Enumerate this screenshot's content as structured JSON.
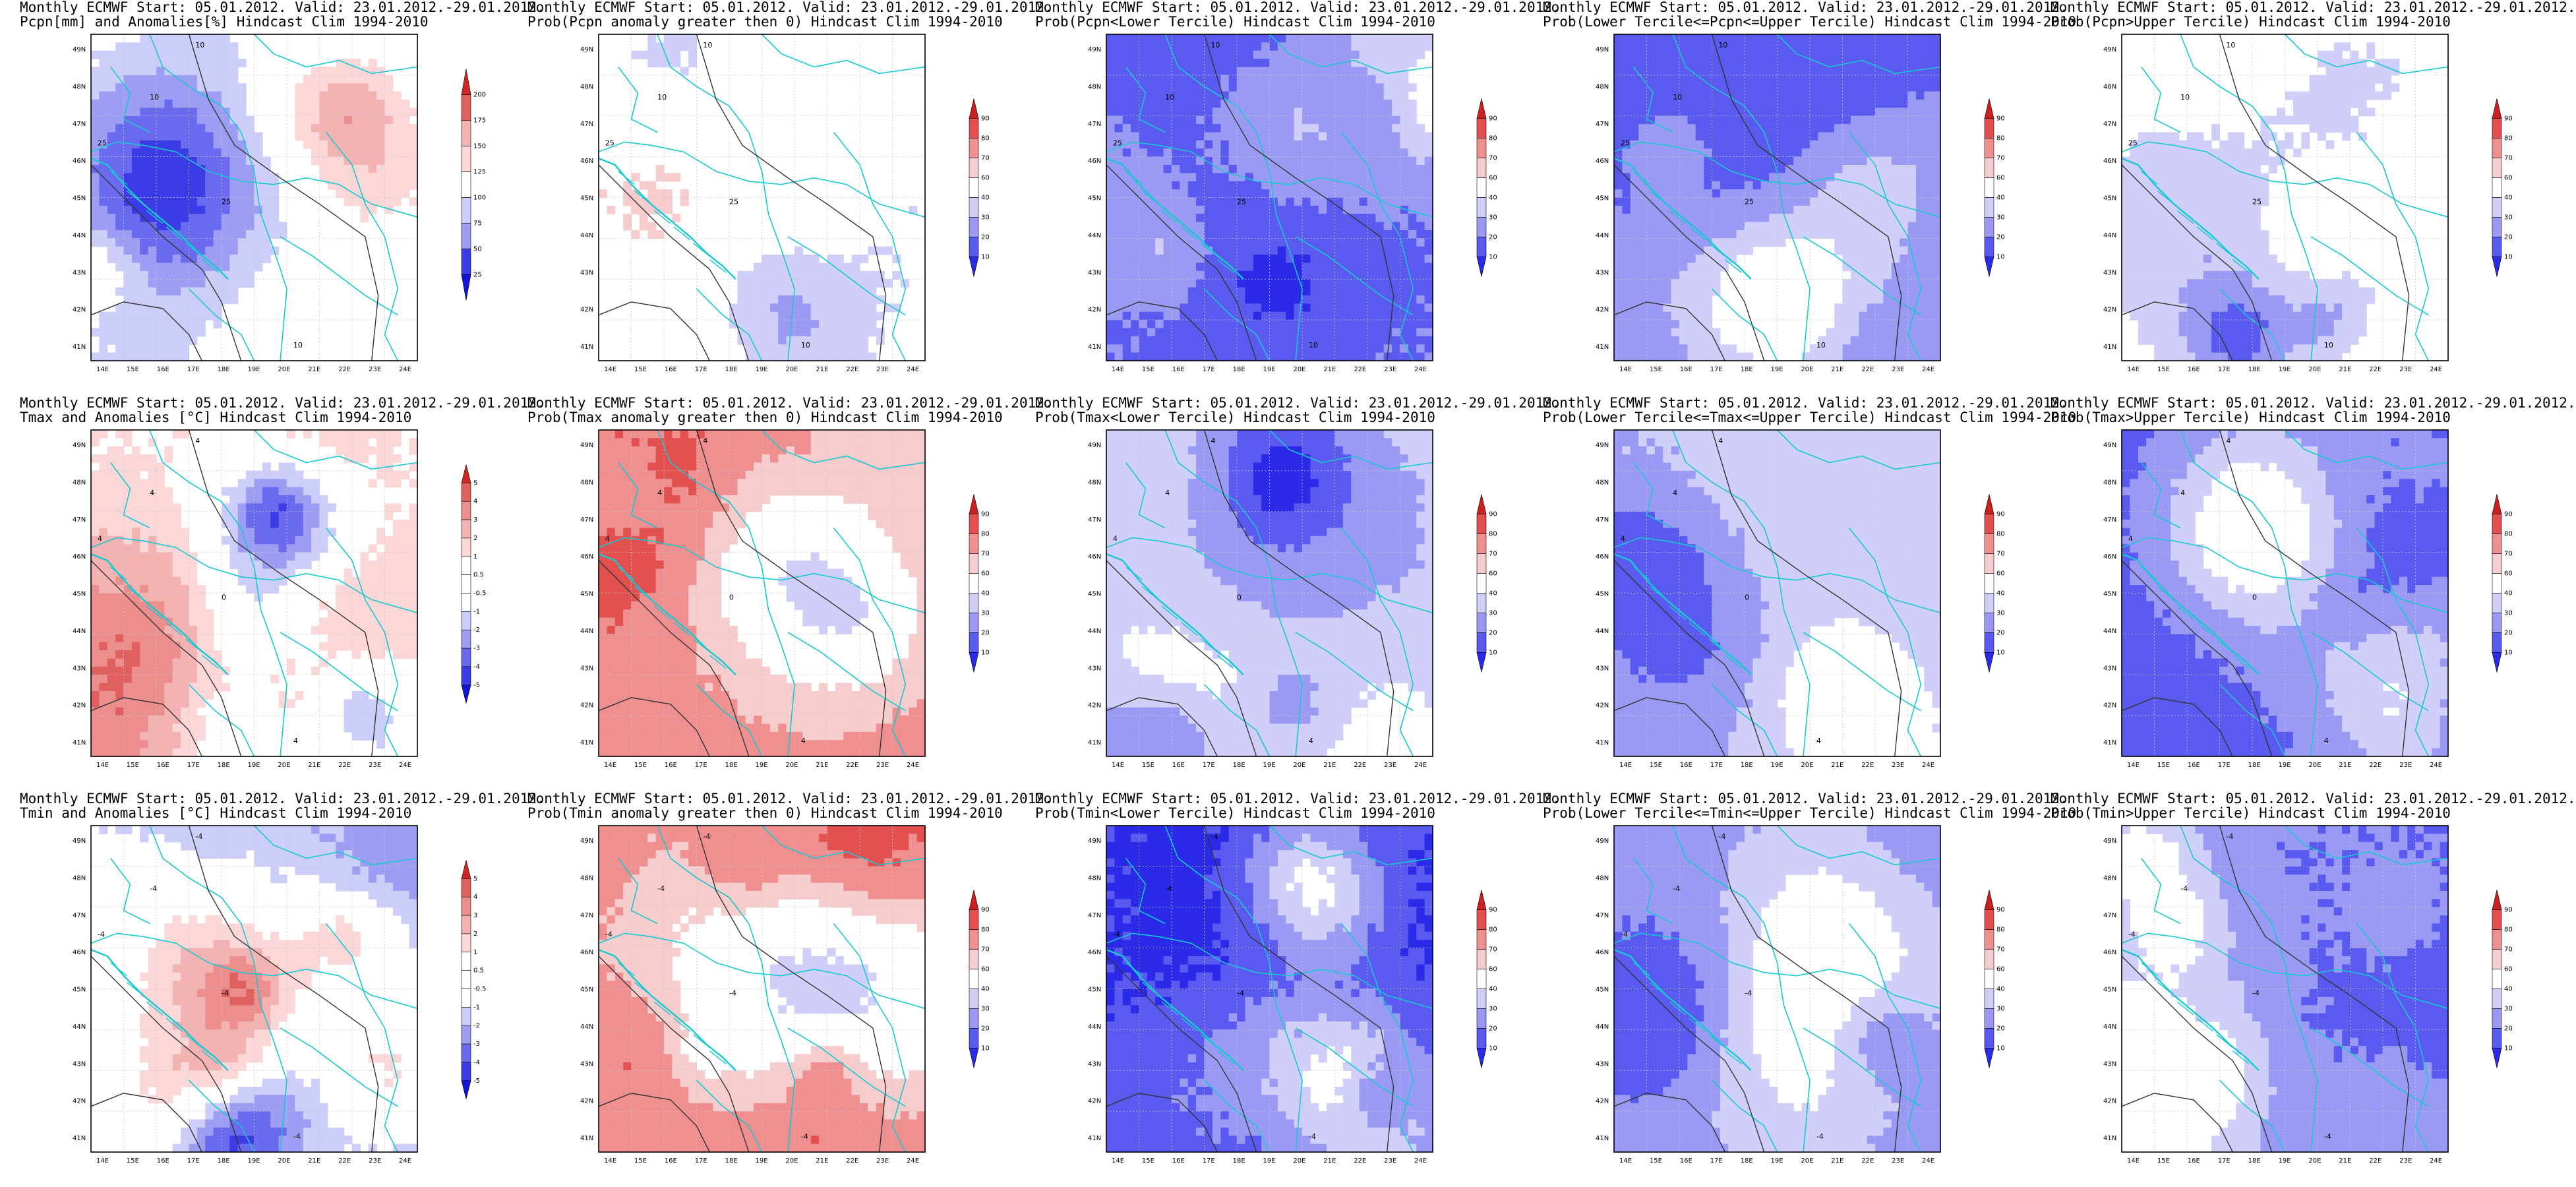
{
  "figure": {
    "panels": [
      {
        "id": "r0c0",
        "title1": "Monthly ECMWF Start: 05.01.2012. Valid: 23.01.2012.-29.01.2012.",
        "title2": "Pcpn[mm] and Anomalies[%] Hindcast Clim 1994-2010",
        "scale": "diverging",
        "ticks": [
          "25",
          "50",
          "75",
          "100",
          "125",
          "150",
          "175",
          "200"
        ],
        "field": "pcpn_anom",
        "contour_labels": [
          "10",
          "10",
          "25",
          "25",
          "10"
        ]
      },
      {
        "id": "r0c1",
        "title1": "Monthly ECMWF Start: 05.01.2012. Valid: 23.01.2012.-29.01.2012.",
        "title2": "Prob(Pcpn anomaly greater then 0) Hindcast Clim 1994-2010",
        "scale": "probability",
        "ticks": [
          "10",
          "20",
          "30",
          "40",
          "60",
          "70",
          "80",
          "90"
        ],
        "field": "pcpn_prob_pos",
        "contour_labels": [
          "10",
          "10",
          "25",
          "25",
          "10"
        ]
      },
      {
        "id": "r0c2",
        "title1": "Monthly ECMWF Start: 05.01.2012. Valid: 23.01.2012.-29.01.2012.",
        "title2": "Prob(Pcpn<Lower Tercile) Hindcast Clim 1994-2010",
        "scale": "probability",
        "ticks": [
          "10",
          "20",
          "30",
          "40",
          "60",
          "70",
          "80",
          "90"
        ],
        "field": "pcpn_lower",
        "contour_labels": [
          "10",
          "10",
          "25",
          "25",
          "10"
        ]
      },
      {
        "id": "r0c3",
        "title1": "Monthly ECMWF Start: 05.01.2012. Valid: 23.01.2012.-29.01.2012.",
        "title2": "Prob(Lower Tercile<=Pcpn<=Upper Tercile) Hindcast Clim 1994-2010",
        "scale": "probability",
        "ticks": [
          "10",
          "20",
          "30",
          "40",
          "60",
          "70",
          "80",
          "90"
        ],
        "field": "pcpn_middle",
        "contour_labels": [
          "10",
          "10",
          "25",
          "25",
          "10"
        ]
      },
      {
        "id": "r0c4",
        "title1": "Monthly ECMWF Start: 05.01.2012. Valid: 23.01.2012.-29.01.2012.",
        "title2": "Prob(Pcpn>Upper Tercile) Hindcast Clim 1994-2010",
        "scale": "probability",
        "ticks": [
          "10",
          "20",
          "30",
          "40",
          "60",
          "70",
          "80",
          "90"
        ],
        "field": "pcpn_upper",
        "contour_labels": [
          "10",
          "10",
          "25",
          "25",
          "10"
        ]
      },
      {
        "id": "r1c0",
        "title1": "Monthly ECMWF Start: 05.01.2012. Valid: 23.01.2012.-29.01.2012.",
        "title2": "Tmax and Anomalies [°C] Hindcast Clim 1994-2010",
        "scale": "diverging",
        "ticks": [
          "-5",
          "-4",
          "-3",
          "-2",
          "-1",
          "-0.5",
          "0.5",
          "1",
          "2",
          "3",
          "4",
          "5"
        ],
        "field": "tmax_anom",
        "contour_labels": [
          "4",
          "4",
          "4",
          "0",
          "4"
        ]
      },
      {
        "id": "r1c1",
        "title1": "Monthly ECMWF Start: 05.01.2012. Valid: 23.01.2012.-29.01.2012.",
        "title2": "Prob(Tmax anomaly greater then 0) Hindcast Clim 1994-2010",
        "scale": "probability",
        "ticks": [
          "10",
          "20",
          "30",
          "40",
          "60",
          "70",
          "80",
          "90"
        ],
        "field": "tmax_prob_pos",
        "contour_labels": [
          "4",
          "4",
          "4",
          "0",
          "4"
        ]
      },
      {
        "id": "r1c2",
        "title1": "Monthly ECMWF Start: 05.01.2012. Valid: 23.01.2012.-29.01.2012.",
        "title2": "Prob(Tmax<Lower Tercile) Hindcast Clim 1994-2010",
        "scale": "probability",
        "ticks": [
          "10",
          "20",
          "30",
          "40",
          "60",
          "70",
          "80",
          "90"
        ],
        "field": "tmax_lower",
        "contour_labels": [
          "4",
          "4",
          "4",
          "0",
          "4"
        ]
      },
      {
        "id": "r1c3",
        "title1": "Monthly ECMWF Start: 05.01.2012. Valid: 23.01.2012.-29.01.2012.",
        "title2": "Prob(Lower Tercile<=Tmax<=Upper Tercile) Hindcast Clim 1994-2010",
        "scale": "probability",
        "ticks": [
          "10",
          "20",
          "30",
          "40",
          "60",
          "70",
          "80",
          "90"
        ],
        "field": "tmax_middle",
        "contour_labels": [
          "4",
          "4",
          "4",
          "0",
          "4"
        ]
      },
      {
        "id": "r1c4",
        "title1": "Monthly ECMWF Start: 05.01.2012. Valid: 23.01.2012.-29.01.2012.",
        "title2": "Prob(Tmax>Upper Tercile) Hindcast Clim 1994-2010",
        "scale": "probability",
        "ticks": [
          "10",
          "20",
          "30",
          "40",
          "60",
          "70",
          "80",
          "90"
        ],
        "field": "tmax_upper",
        "contour_labels": [
          "4",
          "4",
          "4",
          "0",
          "4"
        ]
      },
      {
        "id": "r2c0",
        "title1": "Monthly ECMWF Start: 05.01.2012. Valid: 23.01.2012.-29.01.2012.",
        "title2": "Tmin and Anomalies [°C] Hindcast Clim 1994-2010",
        "scale": "diverging",
        "ticks": [
          "-5",
          "-4",
          "-3",
          "-2",
          "-1",
          "-0.5",
          "0.5",
          "1",
          "2",
          "3",
          "4",
          "5"
        ],
        "field": "tmin_anom",
        "contour_labels": [
          "-4",
          "-4",
          "-4",
          "-4",
          "-4"
        ]
      },
      {
        "id": "r2c1",
        "title1": "Monthly ECMWF Start: 05.01.2012. Valid: 23.01.2012.-29.01.2012.",
        "title2": "Prob(Tmin anomaly greater then 0) Hindcast Clim 1994-2010",
        "scale": "probability",
        "ticks": [
          "10",
          "20",
          "30",
          "40",
          "60",
          "70",
          "80",
          "90"
        ],
        "field": "tmin_prob_pos",
        "contour_labels": [
          "-4",
          "-4",
          "-4",
          "-4",
          "-4"
        ]
      },
      {
        "id": "r2c2",
        "title1": "Monthly ECMWF Start: 05.01.2012. Valid: 23.01.2012.-29.01.2012.",
        "title2": "Prob(Tmin<Lower Tercile) Hindcast Clim 1994-2010",
        "scale": "probability",
        "ticks": [
          "10",
          "20",
          "30",
          "40",
          "60",
          "70",
          "80",
          "90"
        ],
        "field": "tmin_lower",
        "contour_labels": [
          "-4",
          "-4",
          "-4",
          "-4",
          "-4"
        ]
      },
      {
        "id": "r2c3",
        "title1": "Monthly ECMWF Start: 05.01.2012. Valid: 23.01.2012.-29.01.2012.",
        "title2": "Prob(Lower Tercile<=Tmin<=Upper Tercile) Hindcast Clim 1994-2010",
        "scale": "probability",
        "ticks": [
          "10",
          "20",
          "30",
          "40",
          "60",
          "70",
          "80",
          "90"
        ],
        "field": "tmin_middle",
        "contour_labels": [
          "-4",
          "-4",
          "-4",
          "-4",
          "-4"
        ]
      },
      {
        "id": "r2c4",
        "title1": "Monthly ECMWF Start: 05.01.2012. Valid: 23.01.2012.-29.01.2012.",
        "title2": "Prob(Tmin>Upper Tercile) Hindcast Clim 1994-2010",
        "scale": "probability",
        "ticks": [
          "10",
          "20",
          "30",
          "40",
          "60",
          "70",
          "80",
          "90"
        ],
        "field": "tmin_upper",
        "contour_labels": [
          "-4",
          "-4",
          "-4",
          "-4",
          "-4"
        ]
      }
    ],
    "lat_labels": [
      "49N",
      "48N",
      "47N",
      "46N",
      "45N",
      "44N",
      "43N",
      "42N",
      "41N"
    ],
    "lon_labels": [
      "14E",
      "15E",
      "16E",
      "17E",
      "18E",
      "19E",
      "20E",
      "21E",
      "22E",
      "23E",
      "24E"
    ],
    "colors": {
      "probability": [
        "#2a2ae8",
        "#5a5af0",
        "#9a9af5",
        "#cfcffa",
        "#ffffff",
        "#ffffff",
        "#f7cccc",
        "#ef8f8f",
        "#e35050",
        "#cc1f1f"
      ],
      "diverging": [
        "#1414d8",
        "#3c3ce6",
        "#6a6aee",
        "#9d9df4",
        "#cdcdfa",
        "#ffffff",
        "#ffffff",
        "#fbd7d7",
        "#f4b3b3",
        "#ec8e8e",
        "#e06060",
        "#cf2727"
      ],
      "border": "#18c8d0",
      "contour": "#333333"
    }
  }
}
